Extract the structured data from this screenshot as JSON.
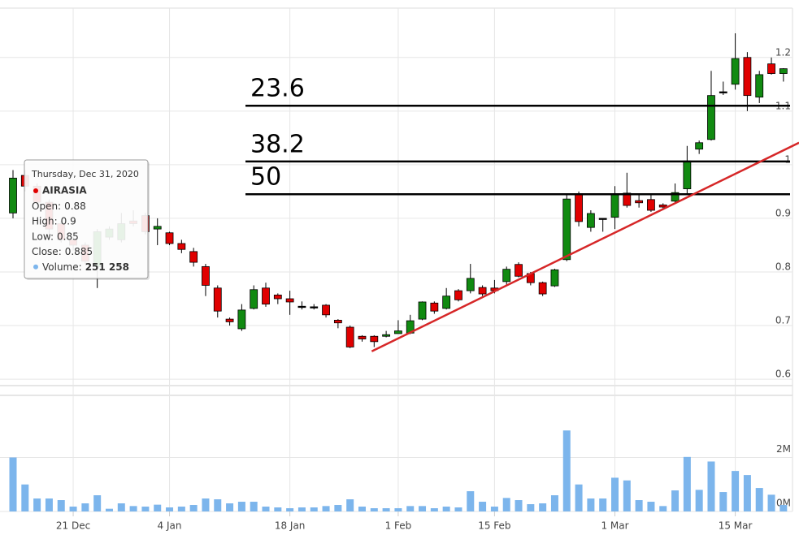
{
  "chart_data": {
    "type": "candlestick",
    "categories": [
      null,
      null,
      null,
      null,
      null,
      "21 Dec",
      null,
      null,
      null,
      null,
      null,
      null,
      null,
      "4 Jan",
      null,
      null,
      null,
      null,
      null,
      null,
      null,
      null,
      null,
      "18 Jan",
      null,
      null,
      null,
      null,
      null,
      null,
      null,
      null,
      "1 Feb",
      null,
      null,
      null,
      null,
      null,
      null,
      null,
      "15 Feb",
      null,
      null,
      null,
      null,
      null,
      null,
      null,
      null,
      null,
      "1 Mar",
      null,
      null,
      null,
      null,
      null,
      null,
      null,
      null,
      null,
      "15 Mar",
      null,
      null,
      null,
      null
    ],
    "open": [
      0.91,
      0.98,
      0.96,
      0.93,
      0.89,
      0.86,
      0.85,
      0.81,
      0.865,
      0.86,
      0.895,
      0.905,
      0.88,
      0.873,
      0.853,
      0.838,
      0.81,
      0.77,
      0.712,
      0.694,
      0.732,
      0.77,
      0.757,
      0.75,
      0.736,
      0.735,
      0.738,
      0.71,
      0.697,
      0.68,
      0.68,
      0.68,
      0.685,
      0.686,
      0.712,
      0.742,
      0.732,
      0.765,
      0.765,
      0.771,
      0.77,
      0.782,
      0.814,
      0.797,
      0.78,
      0.774,
      0.823,
      0.944,
      0.883,
      0.9,
      0.902,
      0.947,
      0.933,
      0.935,
      0.925,
      0.932,
      0.955,
      1.029,
      1.047,
      1.136,
      1.15,
      1.2,
      1.126,
      1.188,
      1.17
    ],
    "high": [
      0.99,
      0.99,
      0.965,
      0.935,
      0.895,
      0.865,
      0.855,
      0.88,
      0.885,
      0.91,
      0.915,
      0.91,
      0.9,
      0.875,
      0.86,
      0.845,
      0.815,
      0.775,
      0.715,
      0.74,
      0.775,
      0.78,
      0.76,
      0.765,
      0.745,
      0.74,
      0.74,
      0.712,
      0.7,
      0.682,
      0.682,
      0.69,
      0.71,
      0.72,
      0.745,
      0.745,
      0.77,
      0.768,
      0.815,
      0.775,
      0.785,
      0.81,
      0.818,
      0.8,
      0.782,
      0.806,
      0.945,
      0.95,
      0.915,
      0.9,
      0.96,
      0.985,
      0.945,
      0.945,
      0.928,
      0.965,
      1.035,
      1.045,
      1.175,
      1.155,
      1.245,
      1.21,
      1.175,
      1.2,
      1.18
    ],
    "low": [
      0.9,
      0.95,
      0.925,
      0.86,
      0.855,
      0.84,
      0.815,
      0.77,
      0.86,
      0.855,
      0.885,
      0.87,
      0.85,
      0.85,
      0.835,
      0.81,
      0.755,
      0.715,
      0.7,
      0.69,
      0.73,
      0.735,
      0.74,
      0.72,
      0.73,
      0.73,
      0.715,
      0.695,
      0.658,
      0.67,
      0.66,
      0.678,
      0.685,
      0.684,
      0.71,
      0.722,
      0.73,
      0.745,
      0.76,
      0.755,
      0.76,
      0.775,
      0.79,
      0.775,
      0.755,
      0.772,
      0.82,
      0.885,
      0.875,
      0.875,
      0.88,
      0.92,
      0.92,
      0.912,
      0.918,
      0.93,
      0.945,
      1.02,
      1.045,
      1.13,
      1.14,
      1.1,
      1.115,
      1.168,
      1.155
    ],
    "close": [
      0.975,
      0.96,
      0.93,
      0.88,
      0.86,
      0.85,
      0.82,
      0.875,
      0.88,
      0.89,
      0.89,
      0.875,
      0.885,
      0.853,
      0.842,
      0.818,
      0.775,
      0.727,
      0.707,
      0.729,
      0.767,
      0.74,
      0.75,
      0.744,
      0.736,
      0.735,
      0.72,
      0.705,
      0.66,
      0.675,
      0.67,
      0.683,
      0.69,
      0.709,
      0.744,
      0.727,
      0.755,
      0.748,
      0.788,
      0.759,
      0.765,
      0.805,
      0.792,
      0.78,
      0.759,
      0.804,
      0.936,
      0.894,
      0.909,
      0.9,
      0.944,
      0.924,
      0.929,
      0.915,
      0.921,
      0.948,
      1.007,
      1.041,
      1.129,
      1.136,
      1.198,
      1.129,
      1.168,
      1.17,
      1.179
    ],
    "up_color": "#118a11",
    "down_color": "#e00000",
    "flat_color": "#000000",
    "ylim": [
      0.588,
      1.292
    ],
    "yticks": [
      0.6,
      0.7,
      0.8,
      0.9,
      1,
      1.1,
      1.2
    ],
    "grid": true,
    "volume": {
      "values": [
        2000000,
        1000000,
        480000,
        480000,
        420000,
        180000,
        300000,
        600000,
        100000,
        300000,
        200000,
        180000,
        251258,
        150000,
        180000,
        240000,
        480000,
        450000,
        300000,
        360000,
        360000,
        180000,
        150000,
        120000,
        150000,
        150000,
        200000,
        240000,
        450000,
        180000,
        120000,
        120000,
        120000,
        200000,
        200000,
        120000,
        180000,
        150000,
        750000,
        360000,
        180000,
        500000,
        420000,
        270000,
        300000,
        600000,
        3000000,
        1000000,
        480000,
        480000,
        1250000,
        1150000,
        420000,
        360000,
        200000,
        780000,
        2020000,
        800000,
        1850000,
        720000,
        1500000,
        1350000,
        870000,
        620000,
        240000
      ],
      "color": "#7cb5ec",
      "ylim": [
        0,
        4300000
      ],
      "yticks": [
        {
          "value": 0,
          "label": "0M"
        },
        {
          "value": 2000000,
          "label": "2M"
        }
      ]
    },
    "annotations": [
      {
        "label": "23.6",
        "value": 1.11,
        "color": "#000000"
      },
      {
        "label": "38.2",
        "value": 1.006,
        "color": "#000000"
      },
      {
        "label": "50",
        "value": 0.945,
        "color": "#000000"
      }
    ],
    "trendline": {
      "start": [
        29.8,
        0.652
      ],
      "end": [
        65.3,
        1.041
      ],
      "color": "#d62728"
    },
    "tooltip": {
      "title": "Thursday, Dec 31, 2020",
      "series": "AIRASIA",
      "series_color": "#e00000",
      "volume_color": "#7cb5ec",
      "rows": [
        {
          "label": "Open:",
          "value": 0.88
        },
        {
          "label": "High:",
          "value": 0.9
        },
        {
          "label": "Low:",
          "value": 0.85
        },
        {
          "label": "Close:",
          "value": 0.885
        },
        {
          "label": "Volume:",
          "value": 251258,
          "value_label": "251 258"
        }
      ]
    }
  }
}
